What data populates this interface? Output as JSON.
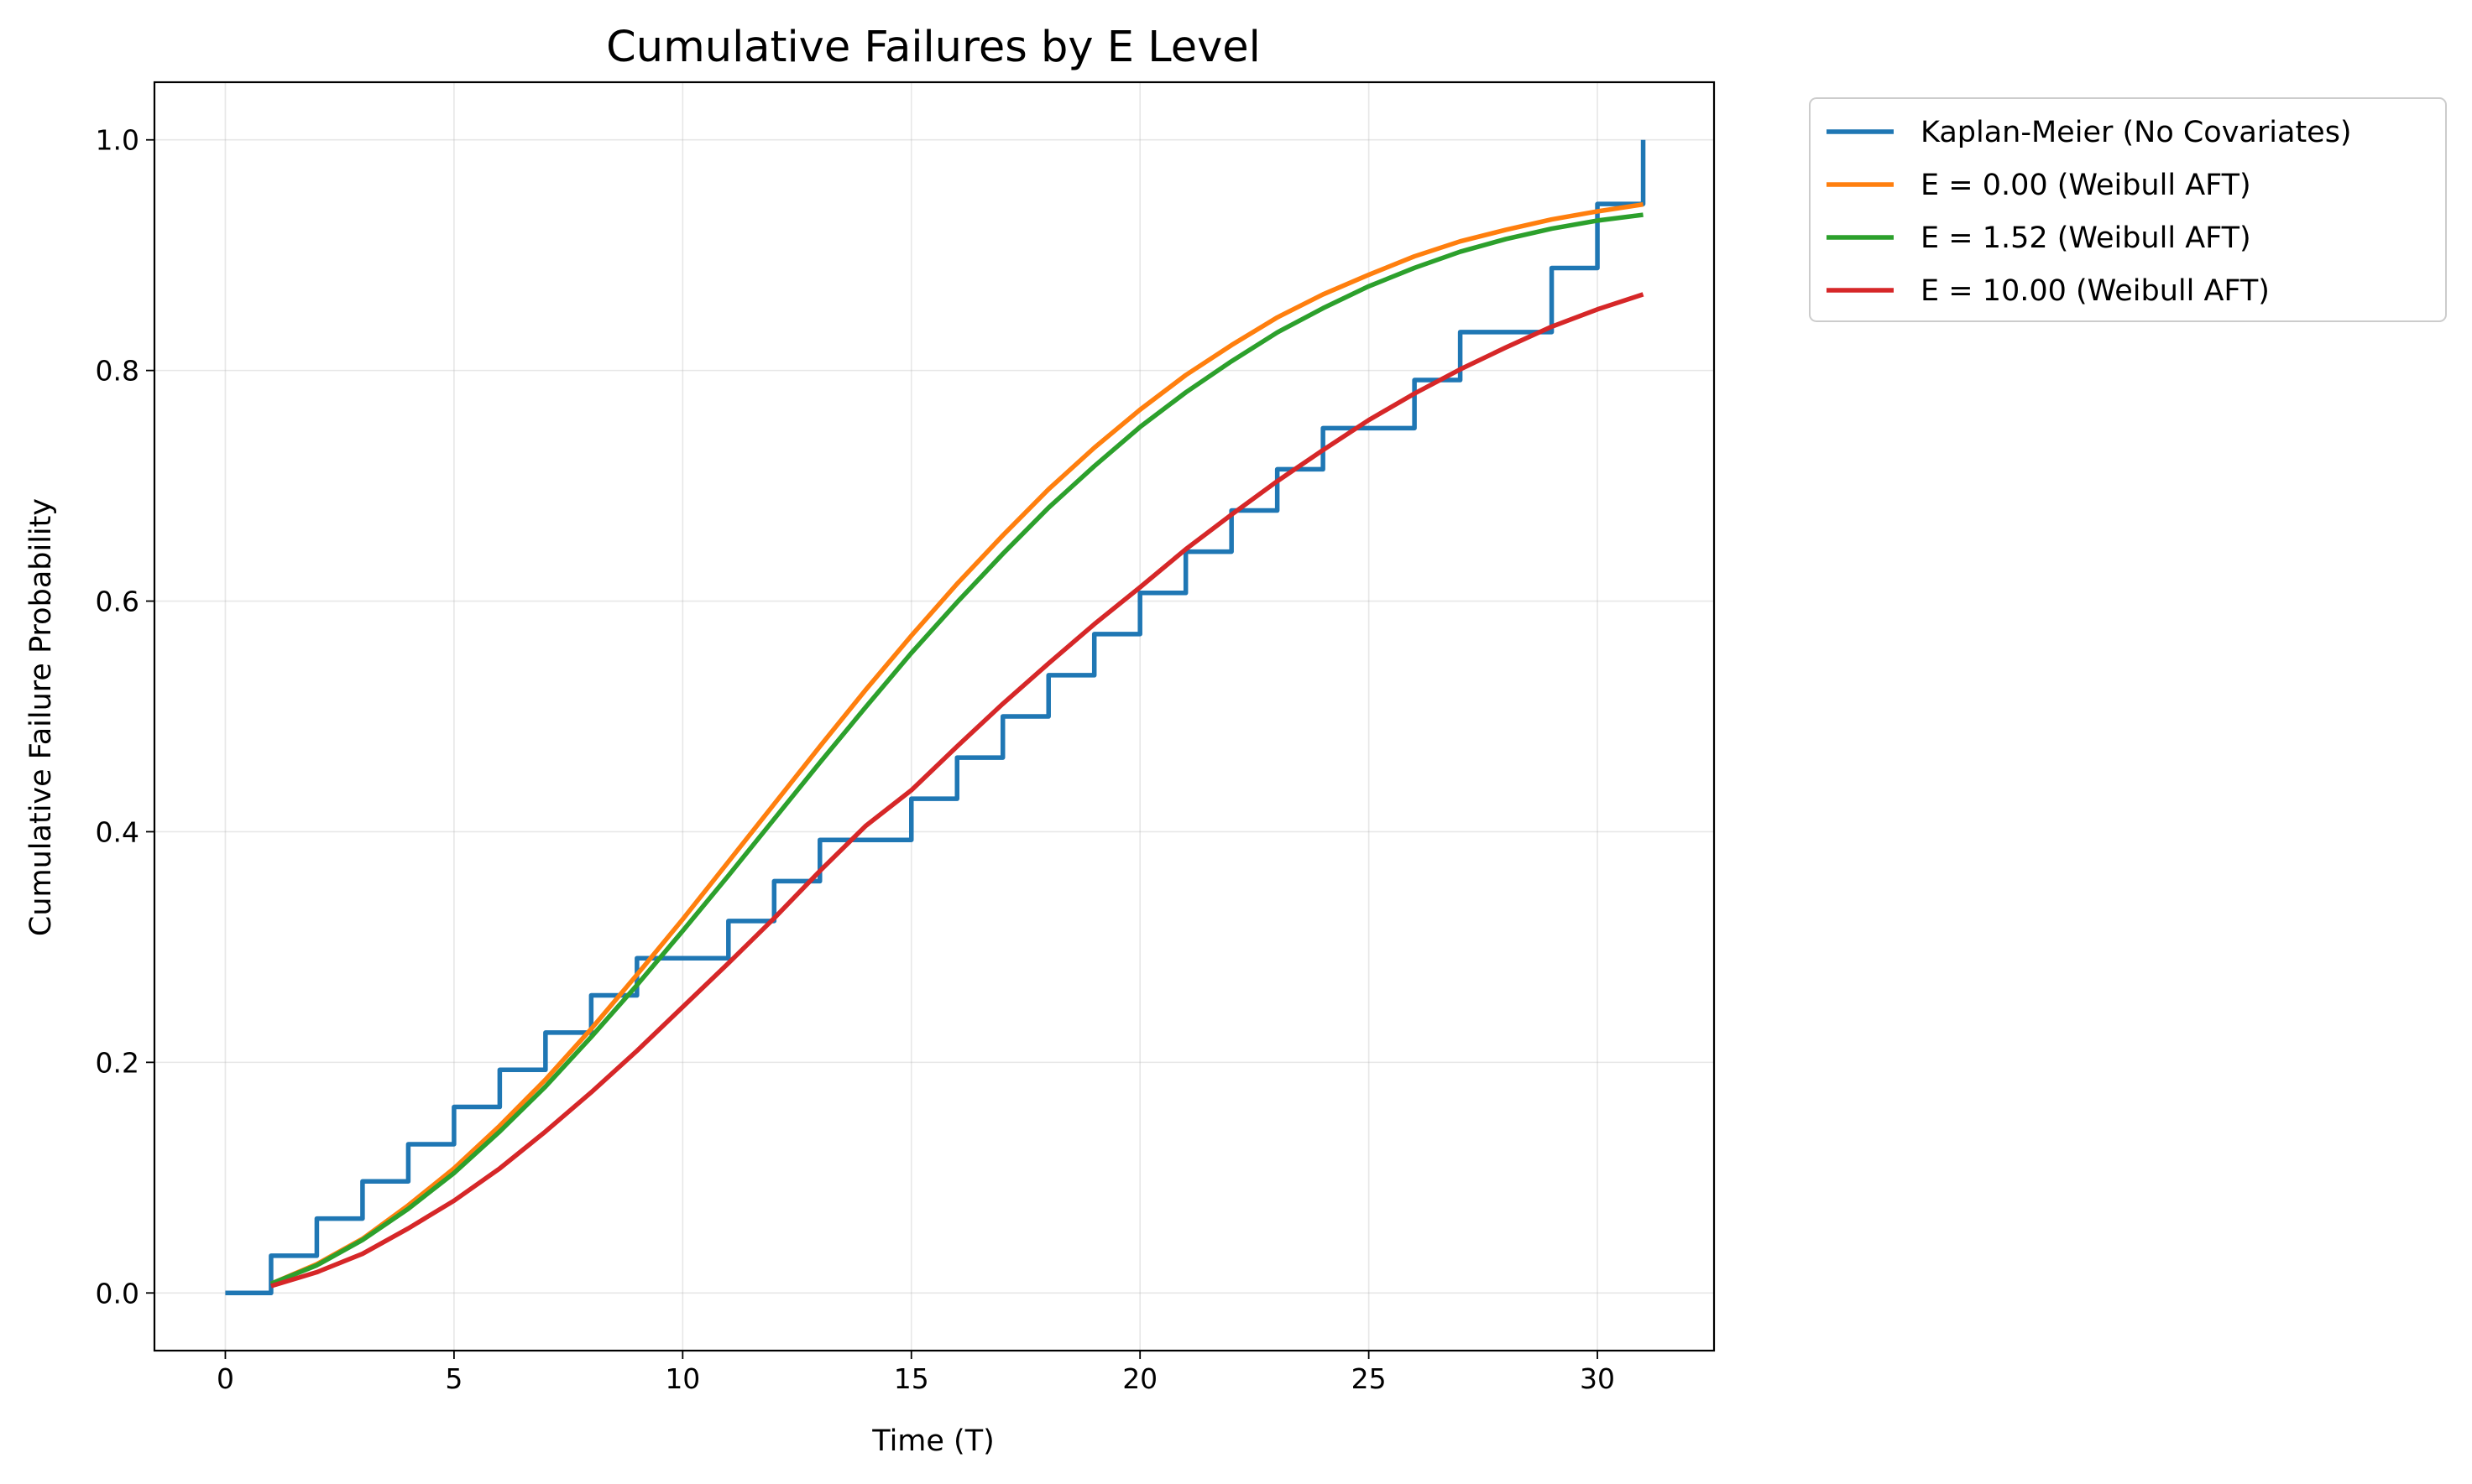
{
  "chart_data": {
    "type": "line",
    "title": "Cumulative Failures by E Level",
    "xlabel": "Time (T)",
    "ylabel": "Cumulative Failure Probability",
    "xlim": [
      -1.55,
      32.55
    ],
    "ylim": [
      -0.05,
      1.05
    ],
    "x_ticks": [
      0,
      5,
      10,
      15,
      20,
      25,
      30
    ],
    "y_ticks": [
      0.0,
      0.2,
      0.4,
      0.6,
      0.8,
      1.0
    ],
    "x_tick_labels": [
      "0",
      "5",
      "10",
      "15",
      "20",
      "25",
      "30"
    ],
    "y_tick_labels": [
      "0.0",
      "0.2",
      "0.4",
      "0.6",
      "0.8",
      "1.0"
    ],
    "grid": true,
    "legend_position": "outside-top-right",
    "series": [
      {
        "name": "Kaplan-Meier (No Covariates)",
        "kind": "step",
        "color": "#1f77b4",
        "x": [
          0,
          1,
          2,
          3,
          4,
          5,
          6,
          7,
          8,
          9,
          11,
          12,
          13,
          15,
          16,
          17,
          18,
          19,
          20,
          21,
          22,
          23,
          24,
          26,
          27,
          29,
          30,
          31
        ],
        "y": [
          0.0,
          0.0323,
          0.0645,
          0.0968,
          0.129,
          0.1613,
          0.1935,
          0.2258,
          0.2581,
          0.2903,
          0.3226,
          0.3571,
          0.3929,
          0.4286,
          0.4643,
          0.5,
          0.5357,
          0.5714,
          0.6071,
          0.6429,
          0.6786,
          0.7143,
          0.75,
          0.7917,
          0.8333,
          0.8889,
          0.9444,
          1.0
        ],
        "x_end": 31
      },
      {
        "name": "E = 0.00 (Weibull AFT)",
        "kind": "line",
        "color": "#ff7f0e",
        "x": [
          1,
          2,
          3,
          4,
          5,
          6,
          7,
          8,
          9,
          10,
          11,
          12,
          13,
          14,
          15,
          16,
          17,
          18,
          19,
          20,
          21,
          22,
          23,
          24,
          25,
          26,
          27,
          28,
          29,
          30,
          31
        ],
        "y": [
          0.008,
          0.025,
          0.047,
          0.076,
          0.108,
          0.145,
          0.185,
          0.229,
          0.276,
          0.324,
          0.374,
          0.424,
          0.474,
          0.523,
          0.57,
          0.615,
          0.657,
          0.697,
          0.733,
          0.766,
          0.796,
          0.822,
          0.846,
          0.866,
          0.883,
          0.899,
          0.912,
          0.922,
          0.931,
          0.938,
          0.944
        ]
      },
      {
        "name": "E = 1.52 (Weibull AFT)",
        "kind": "line",
        "color": "#2ca02c",
        "x": [
          1,
          2,
          3,
          4,
          5,
          6,
          7,
          8,
          9,
          10,
          11,
          12,
          13,
          14,
          15,
          16,
          17,
          18,
          19,
          20,
          21,
          22,
          23,
          24,
          25,
          26,
          27,
          28,
          29,
          30,
          31
        ],
        "y": [
          0.008,
          0.024,
          0.046,
          0.073,
          0.104,
          0.14,
          0.179,
          0.222,
          0.267,
          0.314,
          0.362,
          0.411,
          0.46,
          0.508,
          0.555,
          0.599,
          0.641,
          0.681,
          0.717,
          0.751,
          0.781,
          0.808,
          0.833,
          0.854,
          0.873,
          0.889,
          0.903,
          0.914,
          0.923,
          0.93,
          0.935
        ]
      },
      {
        "name": "E = 10.00 (Weibull AFT)",
        "kind": "line",
        "color": "#d62728",
        "x": [
          1,
          2,
          3,
          4,
          5,
          6,
          7,
          8,
          9,
          10,
          11,
          12,
          13,
          14,
          15,
          16,
          17,
          18,
          19,
          20,
          21,
          22,
          23,
          24,
          25,
          26,
          27,
          28,
          29,
          30,
          31
        ],
        "y": [
          0.006,
          0.018,
          0.034,
          0.056,
          0.08,
          0.108,
          0.14,
          0.174,
          0.21,
          0.248,
          0.286,
          0.325,
          0.366,
          0.405,
          0.436,
          0.474,
          0.511,
          0.546,
          0.58,
          0.612,
          0.645,
          0.675,
          0.704,
          0.731,
          0.757,
          0.78,
          0.801,
          0.82,
          0.838,
          0.853,
          0.866
        ]
      }
    ]
  }
}
